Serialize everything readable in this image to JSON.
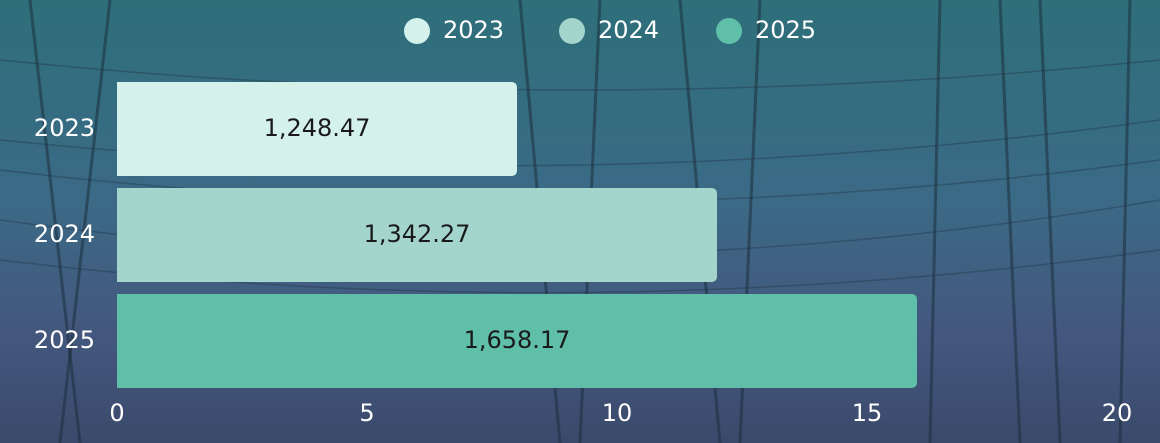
{
  "chart_data": {
    "type": "bar",
    "orientation": "horizontal",
    "categories": [
      "2023",
      "2024",
      "2025"
    ],
    "values": [
      8,
      12,
      16
    ],
    "colors": [
      "#d4f1ec",
      "#a3d5cc",
      "#5fbfa9"
    ],
    "annotations": [
      "1,248.47",
      "1,342.27",
      "1,658.17"
    ],
    "xlim": [
      0,
      20
    ],
    "xticks": [
      0,
      5,
      10,
      15,
      20
    ],
    "legend": "top"
  }
}
